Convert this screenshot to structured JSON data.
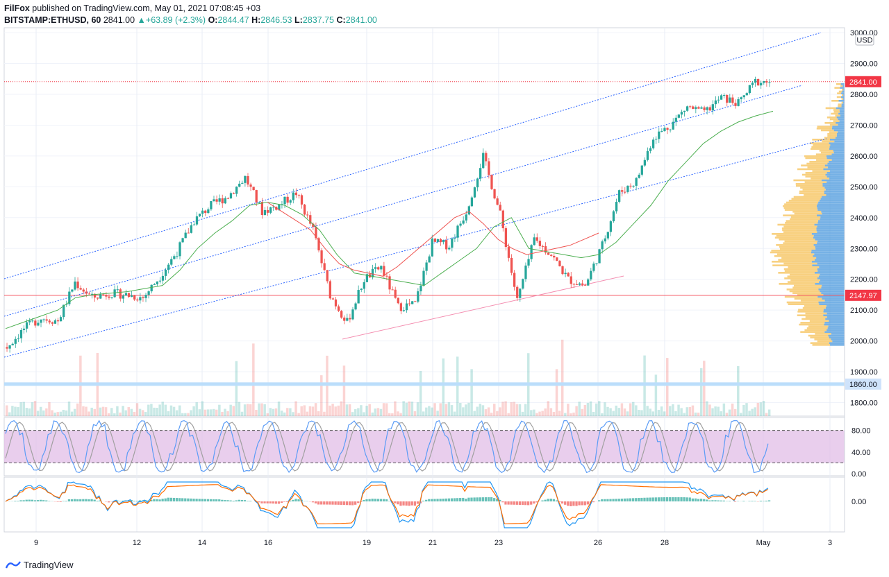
{
  "header": {
    "author": "FilFox",
    "published_text": "published on TradingView.com, May 01, 2021 07:08:45 +03",
    "symbol": "BITSTAMP:ETHUSD, 60",
    "last": "2841.00",
    "change": "+63.89 (+2.3%)",
    "o_label": "O:",
    "o_value": "2844.47",
    "h_label": "H:",
    "h_value": "2846.53",
    "l_label": "L:",
    "l_value": "2837.75",
    "c_label": "C:",
    "c_value": "2841.00"
  },
  "footer": {
    "brand": "TradingView"
  },
  "colors": {
    "up": "#26a69a",
    "down": "#ef5350",
    "ma_green": "#4caf50",
    "ma_red": "#ef5350",
    "channel": "#2962ff",
    "support": "#f48fb1",
    "hline": "#f23645",
    "rsi_band": "#e1bee7",
    "stoch_k": "#5b9cf6",
    "stoch_d": "#a0a0a0",
    "macd": "#2196f3",
    "signal": "#ff6d00"
  },
  "chart_data": {
    "type": "candlestick",
    "title": "BITSTAMP:ETHUSD, 60",
    "currency": "USD",
    "ylim": [
      1740,
      3010
    ],
    "price_ticks": [
      "3000.00",
      "2900.00",
      "2800.00",
      "2700.00",
      "2600.00",
      "2500.00",
      "2400.00",
      "2300.00",
      "2200.00",
      "2100.00",
      "2000.00",
      "1900.00",
      "1800.00"
    ],
    "x_ticks": [
      "9",
      "12",
      "14",
      "16",
      "19",
      "21",
      "23",
      "26",
      "28",
      "May",
      "3"
    ],
    "price_labels": [
      {
        "text": "2841.00",
        "value": 2841.0,
        "style": "red"
      },
      {
        "text": "2147.97",
        "value": 2147.97,
        "style": "red"
      },
      {
        "text": "1860.00",
        "value": 1860.0,
        "style": "blue"
      }
    ],
    "close_series": [
      1980,
      2040,
      2075,
      2065,
      2190,
      2140,
      2155,
      2150,
      2140,
      2210,
      2290,
      2390,
      2440,
      2470,
      2530,
      2420,
      2440,
      2480,
      2360,
      2150,
      2060,
      2200,
      2240,
      2110,
      2120,
      2320,
      2310,
      2420,
      2600,
      2410,
      2130,
      2330,
      2280,
      2200,
      2180,
      2310,
      2480,
      2520,
      2660,
      2700,
      2760,
      2740,
      2790,
      2770,
      2841
    ],
    "ma_green": [
      2040,
      2060,
      2080,
      2100,
      2140,
      2150,
      2155,
      2160,
      2170,
      2180,
      2230,
      2300,
      2350,
      2390,
      2440,
      2450,
      2440,
      2410,
      2360,
      2280,
      2220,
      2210,
      2200,
      2190,
      2180,
      2220,
      2260,
      2300,
      2370,
      2400,
      2300,
      2290,
      2280,
      2270,
      2280,
      2320,
      2380,
      2440,
      2520,
      2580,
      2640,
      2680,
      2710,
      2730,
      2745
    ],
    "ma_red": [
      2450,
      2420,
      2390,
      2360,
      2300,
      2250,
      2230,
      2220,
      2210,
      2240,
      2280,
      2320,
      2360,
      2400,
      2420,
      2380,
      2330,
      2300,
      2280,
      2290,
      2300,
      2310,
      2330,
      2350
    ],
    "stoch_ticks": [
      "80.00",
      "40.00",
      "0.00"
    ],
    "macd_ticks": [
      "0.00"
    ]
  }
}
